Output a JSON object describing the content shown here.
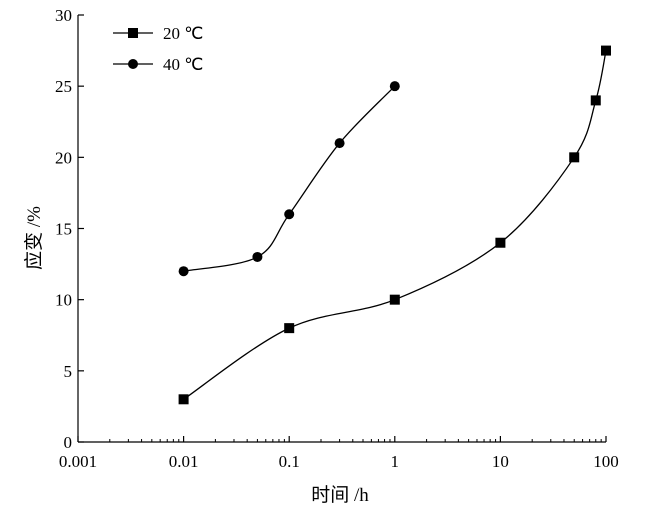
{
  "chart_data": {
    "type": "scatter",
    "xscale": "log",
    "xlim": [
      0.001,
      100
    ],
    "ylim": [
      0,
      30
    ],
    "xticks": [
      0.001,
      0.01,
      0.1,
      1,
      10,
      100
    ],
    "xtick_labels": [
      "0.001",
      "0.01",
      "0.1",
      "1",
      "10",
      "100"
    ],
    "yticks": [
      0,
      5,
      10,
      15,
      20,
      25,
      30
    ],
    "ytick_labels": [
      "0",
      "5",
      "10",
      "15",
      "20",
      "25",
      "30"
    ],
    "xlabel": "时间 /h",
    "ylabel": "应变 /%",
    "legend_position": "top-left",
    "grid": false,
    "series": [
      {
        "name": "20 ℃",
        "marker": "square",
        "x": [
          0.01,
          0.1,
          1,
          10,
          50,
          80,
          100
        ],
        "y": [
          3,
          8,
          10,
          14,
          20,
          24,
          27.5
        ]
      },
      {
        "name": "40 ℃",
        "marker": "circle",
        "x": [
          0.01,
          0.05,
          0.1,
          0.3,
          1
        ],
        "y": [
          12,
          13,
          16,
          21,
          25
        ]
      }
    ]
  }
}
